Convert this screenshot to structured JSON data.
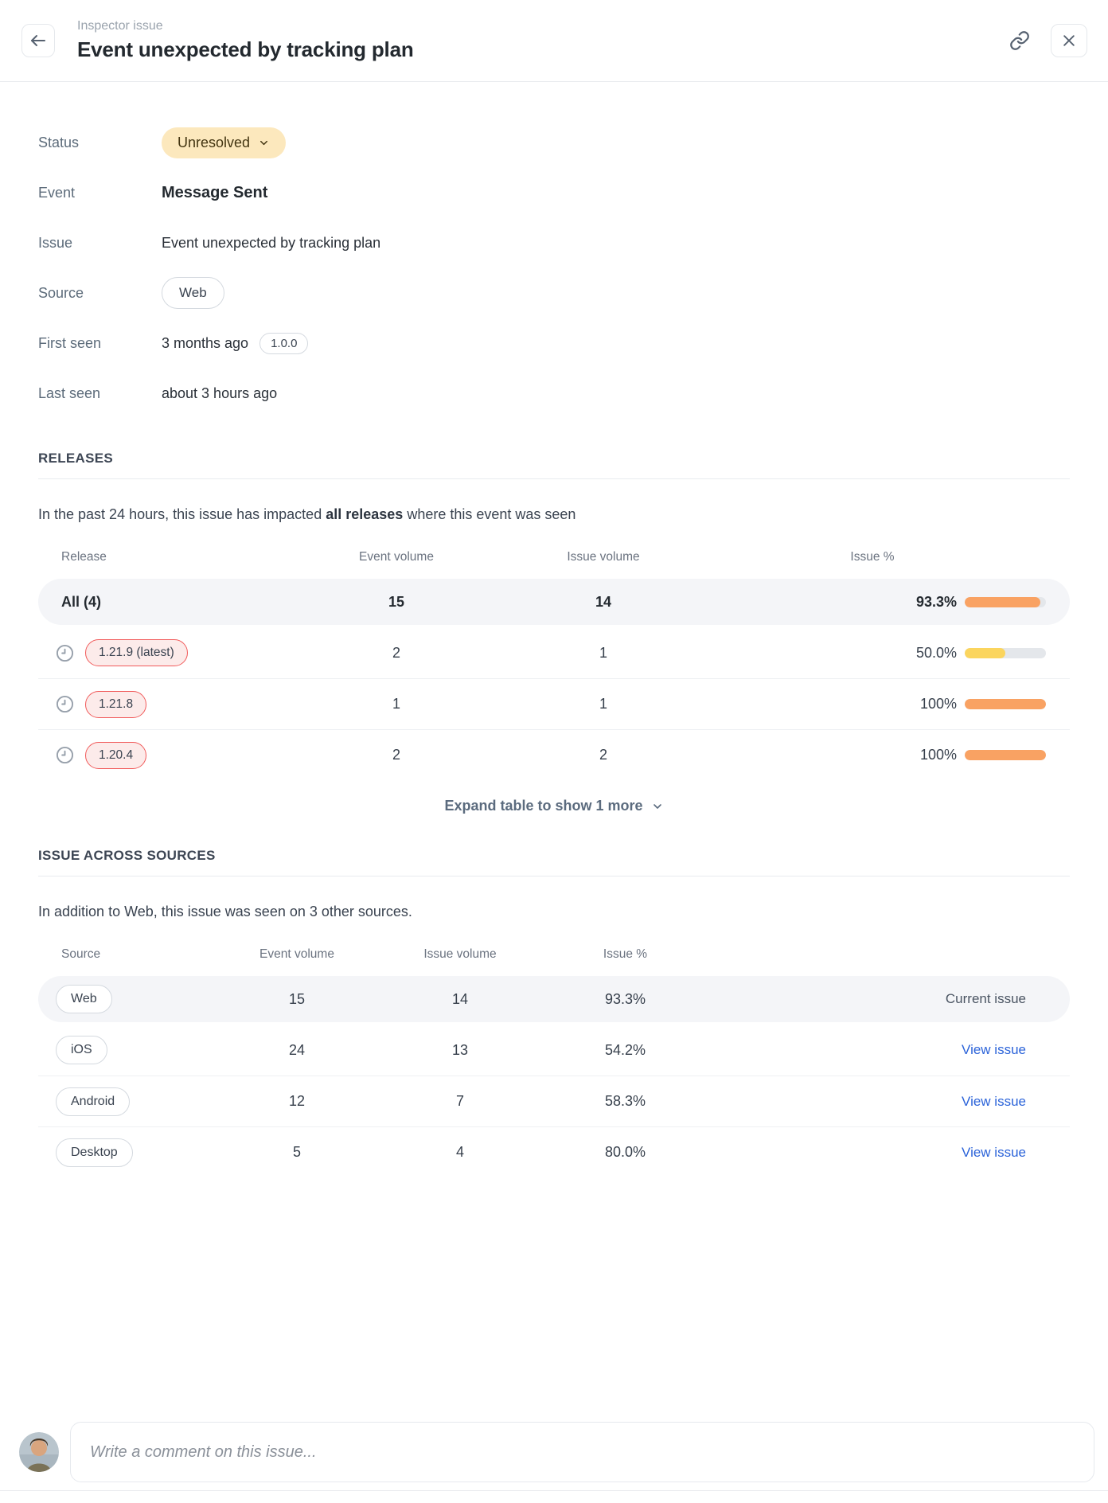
{
  "header": {
    "eyebrow": "Inspector issue",
    "title": "Event unexpected by tracking plan",
    "back_icon": "arrow-left",
    "copy_link_icon": "link-chain",
    "close_icon": "x"
  },
  "details": {
    "status": {
      "label": "Status",
      "value": "Unresolved"
    },
    "event": {
      "label": "Event",
      "value": "Message Sent"
    },
    "issue": {
      "label": "Issue",
      "value": "Event unexpected by tracking plan"
    },
    "source": {
      "label": "Source",
      "value": "Web"
    },
    "first_seen": {
      "label": "First seen",
      "value": "3 months ago",
      "version": "1.0.0"
    },
    "last_seen": {
      "label": "Last seen",
      "value": "about 3 hours ago"
    }
  },
  "releases": {
    "heading": "RELEASES",
    "description_prefix": "In the past 24 hours, this issue has impacted ",
    "description_bold": "all releases",
    "description_suffix": " where this event was seen",
    "columns": {
      "release": "Release",
      "event_volume": "Event volume",
      "issue_volume": "Issue volume",
      "issue_pct": "Issue %"
    },
    "summary_row": {
      "release": "All (4)",
      "event_volume": "15",
      "issue_volume": "14",
      "issue_pct": "93.3%",
      "pct": 93.3,
      "bar_color": "#f9a263"
    },
    "rows": [
      {
        "release": "1.21.9 (latest)",
        "event_volume": "2",
        "issue_volume": "1",
        "issue_pct": "50.0%",
        "pct": 50,
        "bar_color": "#fbd55e"
      },
      {
        "release": "1.21.8",
        "event_volume": "1",
        "issue_volume": "1",
        "issue_pct": "100%",
        "pct": 100,
        "bar_color": "#f9a263"
      },
      {
        "release": "1.20.4",
        "event_volume": "2",
        "issue_volume": "2",
        "issue_pct": "100%",
        "pct": 100,
        "bar_color": "#f9a263"
      }
    ],
    "expand_label": "Expand table to show 1 more"
  },
  "sources": {
    "heading": "ISSUE ACROSS SOURCES",
    "description": "In addition to Web, this issue was seen on 3 other sources.",
    "columns": {
      "source": "Source",
      "event_volume": "Event volume",
      "issue_volume": "Issue volume",
      "issue_pct": "Issue %"
    },
    "rows": [
      {
        "source": "Web",
        "event_volume": "15",
        "issue_volume": "14",
        "issue_pct": "93.3%",
        "action": "Current issue"
      },
      {
        "source": "iOS",
        "event_volume": "24",
        "issue_volume": "13",
        "issue_pct": "54.2%",
        "action": "View issue"
      },
      {
        "source": "Android",
        "event_volume": "12",
        "issue_volume": "7",
        "issue_pct": "58.3%",
        "action": "View issue"
      },
      {
        "source": "Desktop",
        "event_volume": "5",
        "issue_volume": "4",
        "issue_pct": "80.0%",
        "action": "View issue"
      }
    ]
  },
  "comment": {
    "placeholder": "Write a comment on this issue..."
  },
  "colors": {
    "status_badge_bg": "#fce8bd",
    "release_pill_border": "#f15b5b",
    "release_pill_bg": "#fcebea",
    "bar_orange": "#f9a263",
    "bar_yellow": "#fbd55e",
    "bar_track": "#e4e7eb",
    "link_blue": "#2b63d9",
    "row_highlight": "#f4f5f8"
  }
}
